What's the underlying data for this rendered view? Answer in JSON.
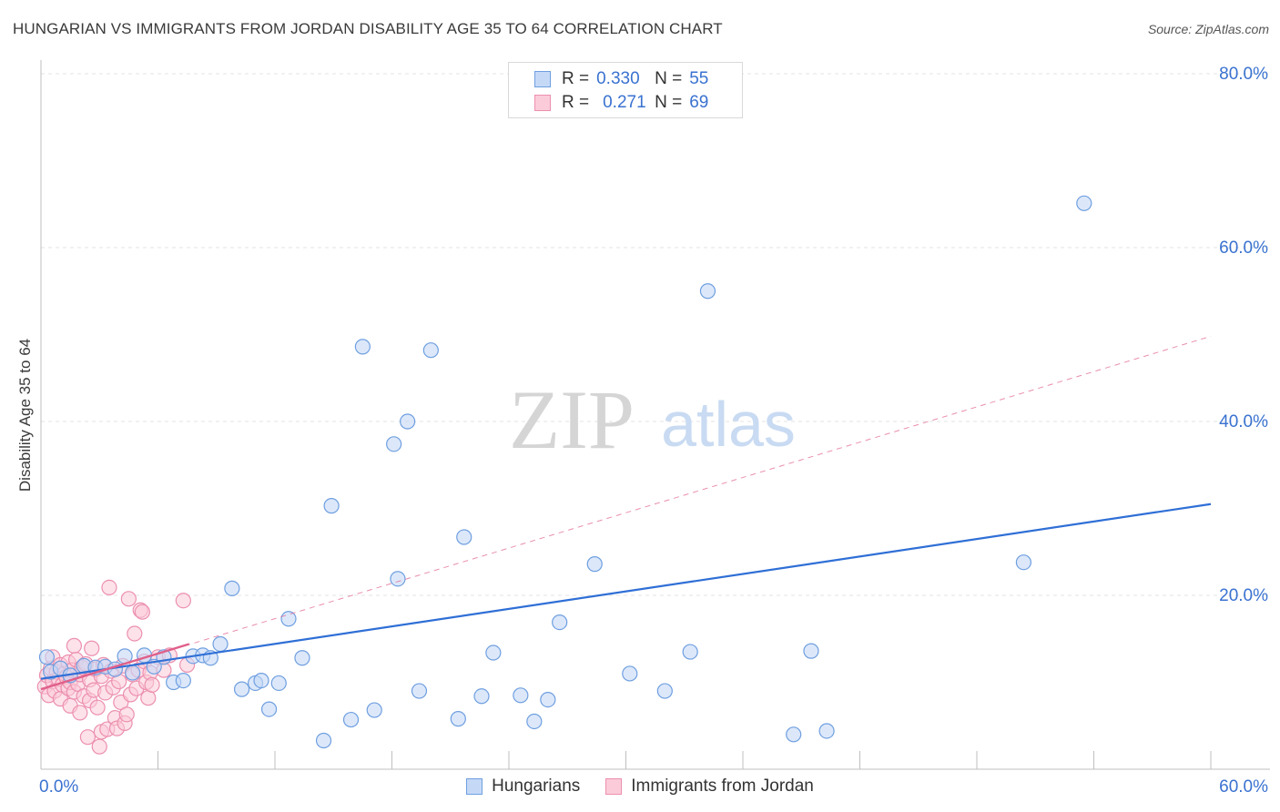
{
  "header": {
    "title": "HUNGARIAN VS IMMIGRANTS FROM JORDAN DISABILITY AGE 35 TO 64 CORRELATION CHART",
    "source": "Source: ZipAtlas.com"
  },
  "watermark": {
    "zip": "ZIP",
    "atlas": "atlas"
  },
  "legend_top": [
    {
      "r_label": "R =",
      "r_value": "0.330",
      "n_label": "N =",
      "n_value": "55"
    },
    {
      "r_label": "R =",
      "r_value": "0.271",
      "n_label": "N =",
      "n_value": "69"
    }
  ],
  "legend_bottom": [
    "Hungarians",
    "Immigrants from Jordan"
  ],
  "colors": {
    "blue_fill": "#c5d9f7",
    "blue_stroke": "#6f9fe0",
    "blue_line": "#2f6fd6",
    "pink_fill": "#fbcbd9",
    "pink_stroke": "#ec8fae",
    "pink_line": "#e0608a",
    "tick_label": "#3a72d0",
    "grid": "#e3e3e3"
  },
  "chart_data": {
    "type": "scatter",
    "title": "HUNGARIAN VS IMMIGRANTS FROM JORDAN DISABILITY AGE 35 TO 64 CORRELATION CHART",
    "xlabel": "",
    "ylabel": "Disability Age 35 to 64",
    "xlim": [
      0,
      60
    ],
    "ylim": [
      0,
      80
    ],
    "x_tick_labels": [
      {
        "value": 0,
        "label": "0.0%"
      },
      {
        "value": 60,
        "label": "60.0%"
      }
    ],
    "y_tick_labels": [
      {
        "value": 80,
        "label": "80.0%"
      },
      {
        "value": 60,
        "label": "60.0%"
      },
      {
        "value": 40,
        "label": "40.0%"
      },
      {
        "value": 20,
        "label": "20.0%"
      }
    ],
    "grid_y": [
      20,
      40,
      60,
      80
    ],
    "series": [
      {
        "name": "Hungarians",
        "r": 0.33,
        "n": 55,
        "trend": {
          "x": [
            0,
            60
          ],
          "y": [
            10.4,
            30.5
          ],
          "style": "solid"
        },
        "points": [
          [
            0.3,
            12.9
          ],
          [
            0.5,
            11.2
          ],
          [
            1.0,
            11.6
          ],
          [
            1.5,
            10.8
          ],
          [
            2.2,
            11.9
          ],
          [
            2.8,
            11.7
          ],
          [
            3.3,
            11.8
          ],
          [
            3.8,
            11.5
          ],
          [
            4.3,
            13.0
          ],
          [
            4.7,
            11.1
          ],
          [
            5.3,
            13.1
          ],
          [
            5.8,
            11.8
          ],
          [
            6.3,
            12.9
          ],
          [
            6.8,
            10.0
          ],
          [
            7.3,
            10.2
          ],
          [
            7.8,
            13.0
          ],
          [
            8.3,
            13.1
          ],
          [
            8.7,
            12.8
          ],
          [
            9.2,
            14.4
          ],
          [
            9.8,
            20.8
          ],
          [
            10.3,
            9.2
          ],
          [
            11.0,
            9.9
          ],
          [
            11.3,
            10.2
          ],
          [
            11.7,
            6.9
          ],
          [
            12.2,
            9.9
          ],
          [
            12.7,
            17.3
          ],
          [
            13.4,
            12.8
          ],
          [
            14.5,
            3.3
          ],
          [
            14.9,
            30.3
          ],
          [
            15.9,
            5.7
          ],
          [
            16.5,
            48.6
          ],
          [
            17.1,
            6.8
          ],
          [
            18.1,
            37.4
          ],
          [
            18.3,
            21.9
          ],
          [
            18.8,
            40.0
          ],
          [
            19.4,
            9.0
          ],
          [
            20.0,
            48.2
          ],
          [
            21.4,
            5.8
          ],
          [
            21.7,
            26.7
          ],
          [
            22.6,
            8.4
          ],
          [
            23.2,
            13.4
          ],
          [
            24.6,
            8.5
          ],
          [
            25.3,
            5.5
          ],
          [
            26.0,
            8.0
          ],
          [
            26.6,
            16.9
          ],
          [
            28.4,
            23.6
          ],
          [
            30.2,
            11.0
          ],
          [
            32.0,
            9.0
          ],
          [
            33.3,
            13.5
          ],
          [
            34.2,
            55.0
          ],
          [
            38.6,
            4.0
          ],
          [
            39.5,
            13.6
          ],
          [
            40.3,
            4.4
          ],
          [
            50.4,
            23.8
          ],
          [
            53.5,
            65.1
          ]
        ]
      },
      {
        "name": "Immigrants from Jordan",
        "r": 0.271,
        "n": 69,
        "trend": {
          "x": [
            0,
            7.6
          ],
          "y": [
            9.2,
            14.4
          ],
          "style": "solid"
        },
        "trend_extended": {
          "x": [
            0,
            60
          ],
          "y": [
            9.2,
            49.8
          ],
          "style": "dashed"
        },
        "points": [
          [
            0.2,
            9.5
          ],
          [
            0.3,
            10.8
          ],
          [
            0.4,
            8.5
          ],
          [
            0.5,
            11.6
          ],
          [
            0.6,
            12.9
          ],
          [
            0.6,
            10.1
          ],
          [
            0.7,
            9.0
          ],
          [
            0.8,
            11.2
          ],
          [
            0.9,
            10.4
          ],
          [
            1.0,
            12.0
          ],
          [
            1.0,
            8.1
          ],
          [
            1.1,
            9.7
          ],
          [
            1.2,
            11.0
          ],
          [
            1.3,
            10.6
          ],
          [
            1.4,
            9.3
          ],
          [
            1.4,
            12.3
          ],
          [
            1.5,
            7.3
          ],
          [
            1.5,
            10.0
          ],
          [
            1.6,
            11.4
          ],
          [
            1.7,
            8.9
          ],
          [
            1.7,
            14.2
          ],
          [
            1.8,
            12.6
          ],
          [
            1.9,
            9.8
          ],
          [
            2.0,
            10.9
          ],
          [
            2.0,
            6.5
          ],
          [
            2.1,
            11.7
          ],
          [
            2.2,
            8.4
          ],
          [
            2.3,
            12.1
          ],
          [
            2.4,
            3.7
          ],
          [
            2.5,
            7.9
          ],
          [
            2.5,
            10.3
          ],
          [
            2.6,
            13.9
          ],
          [
            2.7,
            9.1
          ],
          [
            2.8,
            11.5
          ],
          [
            2.9,
            7.1
          ],
          [
            3.0,
            2.6
          ],
          [
            3.1,
            10.7
          ],
          [
            3.1,
            4.3
          ],
          [
            3.2,
            12.0
          ],
          [
            3.3,
            8.8
          ],
          [
            3.4,
            4.6
          ],
          [
            3.5,
            20.9
          ],
          [
            3.6,
            11.3
          ],
          [
            3.7,
            9.4
          ],
          [
            3.8,
            5.9
          ],
          [
            3.9,
            4.7
          ],
          [
            4.0,
            10.1
          ],
          [
            4.1,
            7.7
          ],
          [
            4.2,
            11.9
          ],
          [
            4.3,
            5.3
          ],
          [
            4.4,
            6.3
          ],
          [
            4.5,
            19.6
          ],
          [
            4.6,
            8.6
          ],
          [
            4.7,
            10.9
          ],
          [
            4.8,
            15.6
          ],
          [
            4.9,
            9.3
          ],
          [
            5.0,
            11.4
          ],
          [
            5.1,
            18.3
          ],
          [
            5.2,
            18.1
          ],
          [
            5.3,
            12.4
          ],
          [
            5.4,
            10.0
          ],
          [
            5.5,
            8.2
          ],
          [
            5.6,
            11.1
          ],
          [
            5.7,
            9.7
          ],
          [
            6.0,
            12.9
          ],
          [
            6.3,
            11.4
          ],
          [
            6.6,
            13.1
          ],
          [
            7.3,
            19.4
          ],
          [
            7.5,
            12.0
          ]
        ]
      }
    ]
  }
}
